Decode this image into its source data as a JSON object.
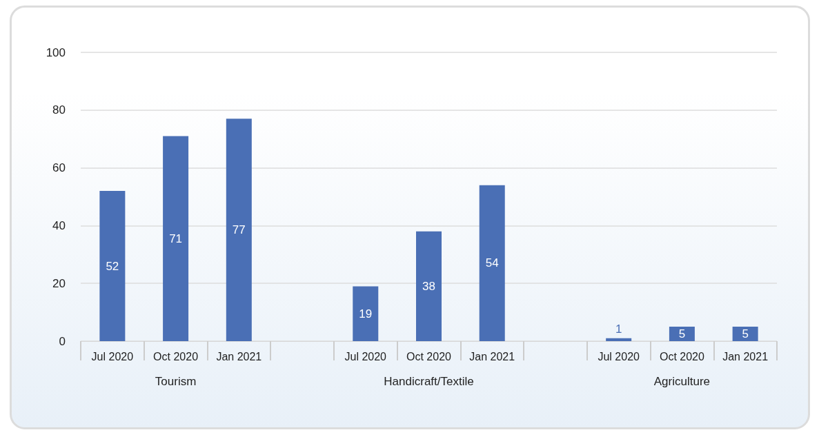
{
  "chart_data": {
    "type": "bar",
    "categories": [
      "Jul 2020",
      "Oct 2020",
      "Jan 2021",
      null,
      "Jul 2020",
      "Oct 2020",
      "Jan 2021",
      null,
      "Jul 2020",
      "Oct 2020",
      "Jan 2021"
    ],
    "values": [
      52,
      71,
      77,
      null,
      19,
      38,
      54,
      null,
      1,
      5,
      5
    ],
    "color": "#4a6fb5",
    "ylim": [
      0,
      100
    ],
    "yticks": [
      0,
      20,
      40,
      60,
      80,
      100
    ],
    "grid": "y",
    "data_labels": true,
    "annotations": [
      "Tourism",
      "Handicraft/Textile",
      "Agriculture"
    ]
  }
}
